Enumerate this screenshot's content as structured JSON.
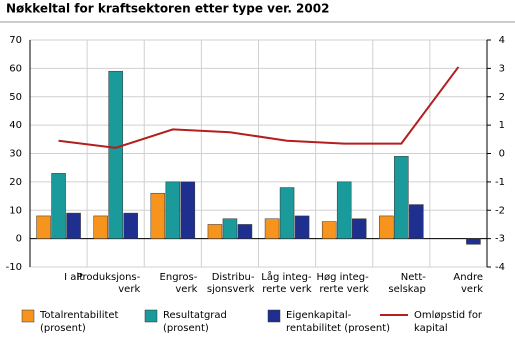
{
  "chart_data": {
    "type": "bar",
    "title": "Nøkkeltal for kraftsektoren etter type ver.  2002",
    "categories": [
      [
        "I alt"
      ],
      [
        "Produksjons-",
        "verk"
      ],
      [
        "Engros-",
        "verk"
      ],
      [
        "Distribu-",
        "sjonsverk"
      ],
      [
        "Låg integ-",
        "rerte verk"
      ],
      [
        "Høg integ-",
        "rerte verk"
      ],
      [
        "Nett-",
        "selskap"
      ],
      [
        "Andre",
        "verk"
      ]
    ],
    "series": [
      {
        "name": [
          "Totalrentabilitet",
          "(prosent)"
        ],
        "color": "#f7941d",
        "values": [
          8,
          8,
          16,
          5,
          7,
          6,
          8,
          0
        ]
      },
      {
        "name": [
          "Resultatgrad",
          "(prosent)"
        ],
        "color": "#1a9a9a",
        "values": [
          23,
          59,
          20,
          7,
          18,
          20,
          29,
          0
        ]
      },
      {
        "name": [
          "Eigenkapital-",
          "rentabilitet (prosent)"
        ],
        "color": "#1f2f8f",
        "values": [
          9,
          9,
          20,
          5,
          8,
          7,
          12,
          -2
        ]
      },
      {
        "name": [
          "Omløpstid for",
          "kapital"
        ],
        "color": "#b41e1e",
        "type": "line",
        "axis": "y2",
        "values": [
          0.45,
          0.2,
          0.85,
          0.75,
          0.45,
          0.35,
          0.35,
          3.05
        ]
      }
    ],
    "ylim": [
      -10,
      70
    ],
    "yticks": [
      -10,
      0,
      10,
      20,
      30,
      40,
      50,
      60,
      70
    ],
    "y2lim": [
      -4,
      4
    ],
    "y2ticks": [
      -4,
      -3,
      -2,
      -1,
      0,
      1,
      2,
      3,
      4
    ],
    "grid": true
  }
}
